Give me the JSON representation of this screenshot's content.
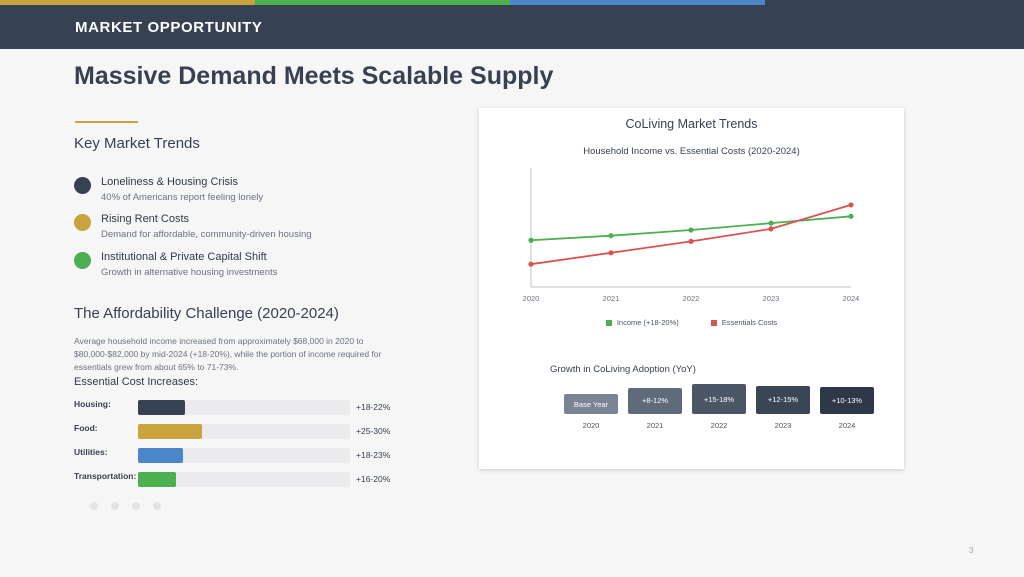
{
  "header": {
    "label": "MARKET OPPORTUNITY"
  },
  "accent_colors": [
    "#c9a33e",
    "#4caf50",
    "#4a86c8",
    "#364152"
  ],
  "title": "Massive Demand Meets Scalable Supply",
  "trends": {
    "heading": "Key Market Trends",
    "items": [
      {
        "title": "Loneliness & Housing Crisis",
        "desc": "40% of Americans report feeling lonely",
        "color": "#364152"
      },
      {
        "title": "Rising Rent Costs",
        "desc": "Demand for affordable, community-driven housing",
        "color": "#c9a33e"
      },
      {
        "title": "Institutional & Private Capital Shift",
        "desc": "Growth in alternative housing investments",
        "color": "#4caf50"
      }
    ]
  },
  "affordability": {
    "heading": "The Affordability Challenge (2020-2024)",
    "paragraph": "Average household income increased from approximately $68,000 in 2020 to $80,000-$82,000 by mid-2024 (+18-20%), while the portion of income required for essentials grew from about 65% to 71-73%.",
    "costs_heading": "Essential Cost Increases:",
    "costs": [
      {
        "label": "Housing:",
        "value": "+18-22%",
        "fill": 0.22,
        "color": "#364152"
      },
      {
        "label": "Food:",
        "value": "+25-30%",
        "fill": 0.3,
        "color": "#c9a33e"
      },
      {
        "label": "Utilities:",
        "value": "+18-23%",
        "fill": 0.21,
        "color": "#4a86c8"
      },
      {
        "label": "Transportation:",
        "value": "+16-20%",
        "fill": 0.18,
        "color": "#4caf50"
      }
    ]
  },
  "chart_card": {
    "title": "CoLiving Market Trends",
    "subtitle": "Household Income vs. Essential Costs (2020-2024)"
  },
  "chart_data": [
    {
      "type": "line",
      "title": "Household Income vs. Essential Costs (2020-2024)",
      "x": [
        "2020",
        "2021",
        "2022",
        "2023",
        "2024"
      ],
      "ylim": [
        0,
        100
      ],
      "grid": false,
      "legend": "bottom",
      "series": [
        {
          "name": "Income (+18-20%)",
          "color": "#4caf50",
          "values": [
            41,
            45,
            50,
            56,
            62
          ]
        },
        {
          "name": "Essentials Costs",
          "color": "#d9534f",
          "values": [
            20,
            30,
            40,
            51,
            72
          ]
        }
      ]
    },
    {
      "type": "bar",
      "title": "Growth in CoLiving Adoption (YoY)",
      "categories": [
        "2020",
        "2021",
        "2022",
        "2023",
        "2024"
      ],
      "labels": [
        "Base Year",
        "+8-12%",
        "+15-18%",
        "+12-15%",
        "+10-13%"
      ],
      "values": [
        0,
        10,
        16.5,
        13.5,
        11.5
      ],
      "colors": [
        "#7a8494",
        "#5f6a7b",
        "#4a5566",
        "#3a4556",
        "#2e3848"
      ]
    }
  ],
  "page_number": "3"
}
